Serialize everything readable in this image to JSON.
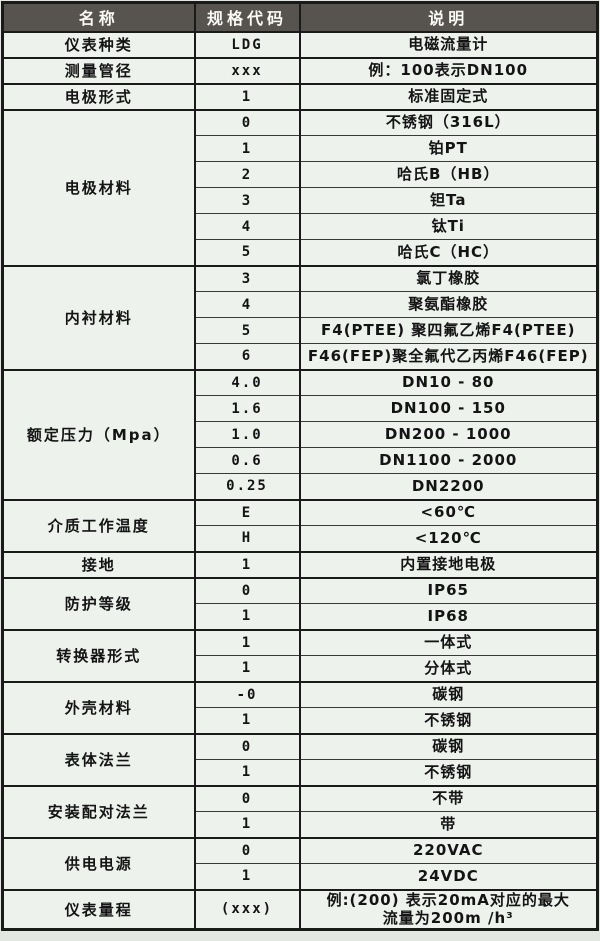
{
  "table": {
    "headers": [
      "名称",
      "规格代码",
      "说明"
    ],
    "groups": [
      {
        "name": "仪表种类",
        "rows": [
          {
            "code": "LDG",
            "desc": "电磁流量计"
          }
        ]
      },
      {
        "name": "测量管径",
        "rows": [
          {
            "code": "xxx",
            "desc": "例：100表示DN100"
          }
        ]
      },
      {
        "name": "电极形式",
        "rows": [
          {
            "code": "1",
            "desc": "标准固定式"
          }
        ]
      },
      {
        "name": "电极材料",
        "rows": [
          {
            "code": "0",
            "desc": "不锈钢（316L）"
          },
          {
            "code": "1",
            "desc": "铂PT"
          },
          {
            "code": "2",
            "desc": "哈氏B（HB）"
          },
          {
            "code": "3",
            "desc": "钽Ta"
          },
          {
            "code": "4",
            "desc": "钛Ti"
          },
          {
            "code": "5",
            "desc": "哈氏C（HC）"
          }
        ]
      },
      {
        "name": "内衬材料",
        "rows": [
          {
            "code": "3",
            "desc": "氯丁橡胶"
          },
          {
            "code": "4",
            "desc": "聚氨酯橡胶"
          },
          {
            "code": "5",
            "desc": "F4(PTEE) 聚四氟乙烯F4(PTEE)"
          },
          {
            "code": "6",
            "desc": "F46(FEP)聚全氟代乙丙烯F46(FEP)"
          }
        ]
      },
      {
        "name": "额定压力（Mpa）",
        "rows": [
          {
            "code": "4.0",
            "desc": "DN10 - 80"
          },
          {
            "code": "1.6",
            "desc": "DN100 - 150"
          },
          {
            "code": "1.0",
            "desc": "DN200 - 1000"
          },
          {
            "code": "0.6",
            "desc": "DN1100 - 2000"
          },
          {
            "code": "0.25",
            "desc": "DN2200"
          }
        ]
      },
      {
        "name": "介质工作温度",
        "rows": [
          {
            "code": "E",
            "desc": "<60℃"
          },
          {
            "code": "H",
            "desc": "<120℃"
          }
        ]
      },
      {
        "name": "接地",
        "rows": [
          {
            "code": "1",
            "desc": "内置接地电极"
          }
        ]
      },
      {
        "name": "防护等级",
        "rows": [
          {
            "code": "0",
            "desc": "IP65"
          },
          {
            "code": "1",
            "desc": "IP68"
          }
        ]
      },
      {
        "name": "转换器形式",
        "rows": [
          {
            "code": "1",
            "desc": "一体式"
          },
          {
            "code": "1",
            "desc": "分体式"
          }
        ]
      },
      {
        "name": "外壳材料",
        "rows": [
          {
            "code": "-0",
            "desc": "碳钢"
          },
          {
            "code": "1",
            "desc": "不锈钢"
          }
        ]
      },
      {
        "name": "表体法兰",
        "rows": [
          {
            "code": "0",
            "desc": "碳钢"
          },
          {
            "code": "1",
            "desc": "不锈钢"
          }
        ]
      },
      {
        "name": "安装配对法兰",
        "rows": [
          {
            "code": "0",
            "desc": "不带"
          },
          {
            "code": "1",
            "desc": "带"
          }
        ]
      },
      {
        "name": "供电电源",
        "rows": [
          {
            "code": "0",
            "desc": "220VAC"
          },
          {
            "code": "1",
            "desc": "24VDC"
          }
        ]
      },
      {
        "name": "仪表量程",
        "rows": [
          {
            "code": "(xxx)",
            "desc": "例:(200) 表示20mA对应的最大\n流量为200m /h³"
          }
        ]
      }
    ],
    "colors": {
      "header_bg": "#57534e",
      "header_text": "#fafaf7",
      "cell_bg": "#edf2ed",
      "page_bg": "#e3e7e2",
      "border_strong": "#1a1a1a",
      "border_thin": "#3a3a3a",
      "text": "#141414"
    }
  }
}
